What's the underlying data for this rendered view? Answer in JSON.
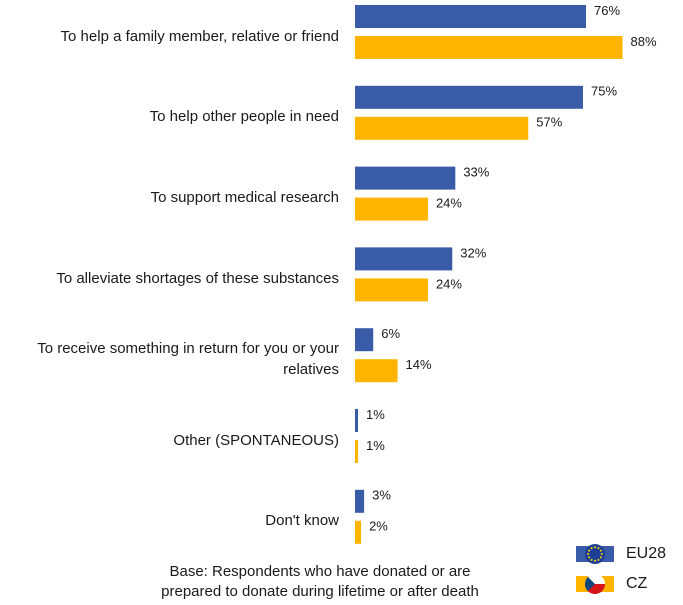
{
  "chart_data": {
    "type": "bar",
    "orientation": "horizontal",
    "categories": [
      "To help a family member, relative or friend",
      "To help other people in need",
      "To support medical research",
      "To alleviate shortages of these substances",
      "To receive something in return for you or your relatives",
      "Other (SPONTANEOUS)",
      "Don't know"
    ],
    "series": [
      {
        "name": "EU28",
        "values": [
          76,
          75,
          33,
          32,
          6,
          1,
          3
        ]
      },
      {
        "name": "CZ",
        "values": [
          88,
          57,
          24,
          24,
          14,
          1,
          2
        ]
      }
    ],
    "value_suffix": "%",
    "xlim": [
      0,
      100
    ],
    "grid": false,
    "legend_position": "bottom-right"
  },
  "colors": {
    "EU28": "#3a5ba8",
    "CZ": "#ffb400"
  },
  "legend": [
    {
      "label": "EU28",
      "icon": "eu-flag-icon"
    },
    {
      "label": "CZ",
      "icon": "cz-flag-icon"
    }
  ],
  "footnote": {
    "line1": "Base: Respondents who have donated or are",
    "line2": "prepared to donate during lifetime or after death"
  }
}
